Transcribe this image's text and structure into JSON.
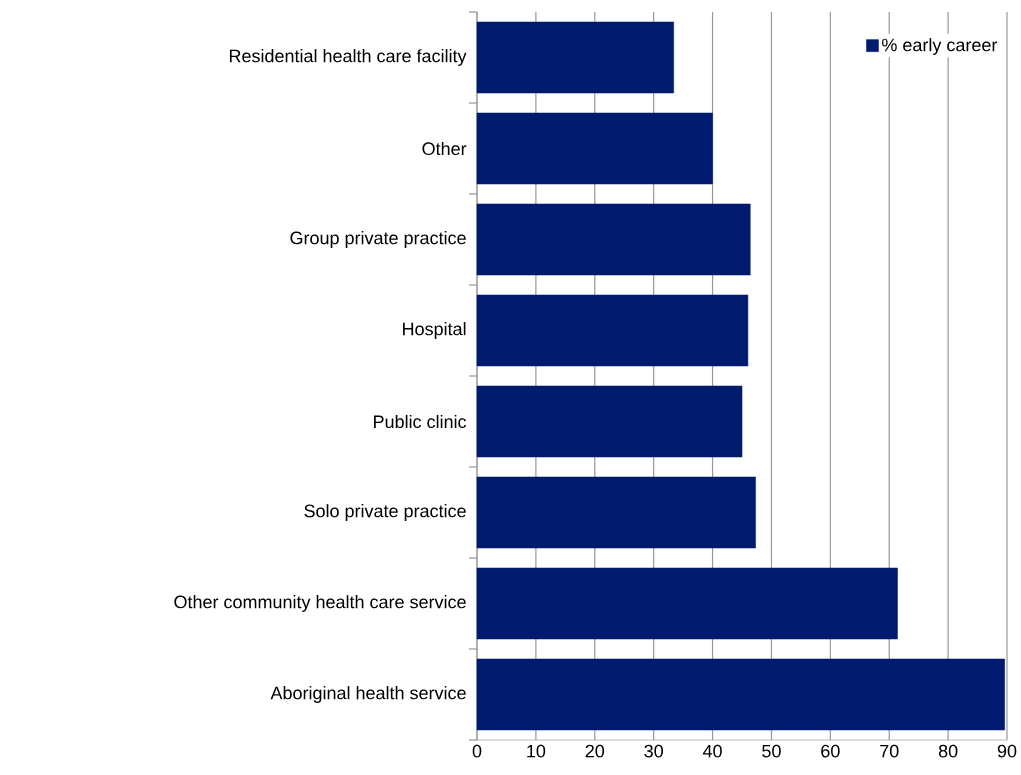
{
  "chart_data": {
    "type": "bar",
    "orientation": "horizontal",
    "categories": [
      "Residential health care facility",
      "Other",
      "Group private practice",
      "Hospital",
      "Public clinic",
      "Solo private practice",
      "Other community health care service",
      "Aboriginal health service"
    ],
    "series": [
      {
        "name": "% early career",
        "color": "#001a6e",
        "values": [
          33.4,
          40.0,
          46.4,
          46.0,
          45.0,
          47.3,
          71.4,
          89.6
        ]
      }
    ],
    "xlim": [
      0,
      90
    ],
    "xticks": [
      0,
      10,
      20,
      30,
      40,
      50,
      60,
      70,
      80,
      90
    ],
    "grid": "x",
    "legend": "top right"
  }
}
